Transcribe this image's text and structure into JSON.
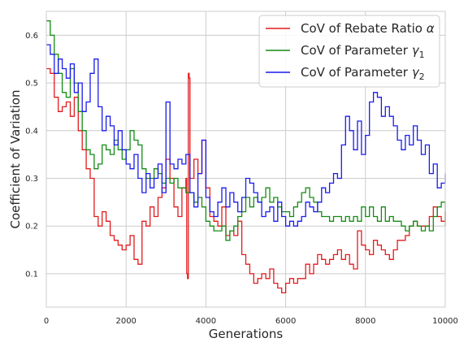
{
  "chart_data": {
    "type": "line",
    "title": "",
    "xlabel": "Generations",
    "ylabel": "Coefficient of Variation",
    "xlim": [
      0,
      10000
    ],
    "ylim": [
      0.03,
      0.65
    ],
    "xticks": [
      0,
      2000,
      4000,
      6000,
      8000,
      10000
    ],
    "xtick_labels": [
      "0",
      "2000",
      "4000",
      "6000",
      "8000",
      "10000"
    ],
    "yticks": [
      0.1,
      0.2,
      0.3,
      0.4,
      0.5,
      0.6
    ],
    "ytick_labels": [
      "0.1",
      "0.2",
      "0.3",
      "0.4",
      "0.5",
      "0.6"
    ],
    "grid": true,
    "legend_position": "top-right",
    "series": [
      {
        "name": "CoV of Rebate Ratio α",
        "label_main": "CoV of Rebate Ratio",
        "label_math": "α",
        "color": "#e31a1c",
        "x": [
          0,
          100,
          200,
          300,
          400,
          500,
          600,
          700,
          800,
          900,
          1000,
          1100,
          1200,
          1300,
          1400,
          1500,
          1600,
          1700,
          1800,
          1900,
          2000,
          2100,
          2200,
          2300,
          2400,
          2500,
          2600,
          2700,
          2800,
          2900,
          3000,
          3100,
          3200,
          3300,
          3400,
          3500,
          3520,
          3540,
          3560,
          3580,
          3600,
          3700,
          3800,
          3900,
          4000,
          4100,
          4200,
          4300,
          4400,
          4500,
          4600,
          4700,
          4800,
          4900,
          5000,
          5100,
          5200,
          5300,
          5400,
          5500,
          5600,
          5700,
          5800,
          5900,
          6000,
          6100,
          6200,
          6300,
          6400,
          6500,
          6600,
          6700,
          6800,
          6900,
          7000,
          7100,
          7200,
          7300,
          7400,
          7500,
          7600,
          7700,
          7800,
          7900,
          8000,
          8100,
          8200,
          8300,
          8400,
          8500,
          8600,
          8700,
          8800,
          8900,
          9000,
          9100,
          9200,
          9300,
          9400,
          9500,
          9600,
          9700,
          9800,
          9900,
          10000
        ],
        "y": [
          0.53,
          0.52,
          0.47,
          0.44,
          0.45,
          0.46,
          0.43,
          0.47,
          0.4,
          0.36,
          0.32,
          0.3,
          0.22,
          0.2,
          0.23,
          0.21,
          0.18,
          0.17,
          0.16,
          0.15,
          0.16,
          0.18,
          0.13,
          0.12,
          0.21,
          0.2,
          0.24,
          0.22,
          0.26,
          0.28,
          0.34,
          0.3,
          0.24,
          0.22,
          0.28,
          0.3,
          0.1,
          0.09,
          0.52,
          0.51,
          0.3,
          0.34,
          0.31,
          0.38,
          0.28,
          0.22,
          0.21,
          0.2,
          0.24,
          0.18,
          0.19,
          0.18,
          0.21,
          0.14,
          0.12,
          0.1,
          0.08,
          0.09,
          0.1,
          0.09,
          0.11,
          0.08,
          0.07,
          0.06,
          0.08,
          0.09,
          0.08,
          0.09,
          0.09,
          0.12,
          0.1,
          0.12,
          0.14,
          0.13,
          0.12,
          0.13,
          0.14,
          0.15,
          0.13,
          0.14,
          0.12,
          0.11,
          0.19,
          0.16,
          0.15,
          0.14,
          0.17,
          0.16,
          0.15,
          0.14,
          0.13,
          0.15,
          0.17,
          0.17,
          0.18,
          0.2,
          0.21,
          0.2,
          0.2,
          0.2,
          0.22,
          0.24,
          0.22,
          0.21,
          0.23
        ]
      },
      {
        "name": "CoV of Parameter γ1",
        "label_main": "CoV of Parameter",
        "label_math": "γ",
        "label_sub": "1",
        "color": "#138c13",
        "x": [
          0,
          100,
          200,
          300,
          400,
          500,
          600,
          700,
          800,
          900,
          1000,
          1100,
          1200,
          1300,
          1400,
          1500,
          1600,
          1700,
          1800,
          1900,
          2000,
          2100,
          2200,
          2300,
          2400,
          2500,
          2600,
          2700,
          2800,
          2900,
          3000,
          3100,
          3200,
          3300,
          3400,
          3500,
          3600,
          3700,
          3800,
          3900,
          4000,
          4100,
          4200,
          4300,
          4400,
          4500,
          4600,
          4700,
          4800,
          4900,
          5000,
          5100,
          5200,
          5300,
          5400,
          5500,
          5600,
          5700,
          5800,
          5900,
          6000,
          6100,
          6200,
          6300,
          6400,
          6500,
          6600,
          6700,
          6800,
          6900,
          7000,
          7100,
          7200,
          7300,
          7400,
          7500,
          7600,
          7700,
          7800,
          7900,
          8000,
          8100,
          8200,
          8300,
          8400,
          8500,
          8600,
          8700,
          8800,
          8900,
          9000,
          9100,
          9200,
          9300,
          9400,
          9500,
          9600,
          9700,
          9800,
          9900,
          10000
        ],
        "y": [
          0.63,
          0.6,
          0.56,
          0.52,
          0.48,
          0.47,
          0.53,
          0.5,
          0.44,
          0.4,
          0.36,
          0.35,
          0.32,
          0.33,
          0.37,
          0.36,
          0.35,
          0.38,
          0.36,
          0.34,
          0.36,
          0.4,
          0.38,
          0.37,
          0.32,
          0.3,
          0.3,
          0.32,
          0.31,
          0.29,
          0.3,
          0.29,
          0.3,
          0.28,
          0.28,
          0.27,
          0.27,
          0.25,
          0.26,
          0.24,
          0.21,
          0.2,
          0.19,
          0.19,
          0.2,
          0.17,
          0.19,
          0.2,
          0.22,
          0.23,
          0.26,
          0.24,
          0.26,
          0.25,
          0.26,
          0.28,
          0.25,
          0.26,
          0.24,
          0.23,
          0.23,
          0.22,
          0.24,
          0.25,
          0.27,
          0.28,
          0.26,
          0.25,
          0.23,
          0.22,
          0.22,
          0.21,
          0.22,
          0.22,
          0.21,
          0.22,
          0.21,
          0.22,
          0.21,
          0.24,
          0.22,
          0.24,
          0.22,
          0.21,
          0.24,
          0.21,
          0.22,
          0.21,
          0.21,
          0.2,
          0.19,
          0.2,
          0.21,
          0.2,
          0.19,
          0.2,
          0.19,
          0.22,
          0.24,
          0.25,
          0.2
        ]
      },
      {
        "name": "CoV of Parameter γ2",
        "label_main": "CoV of Parameter",
        "label_math": "γ",
        "label_sub": "2",
        "color": "#1a1aee",
        "x": [
          0,
          100,
          200,
          300,
          400,
          500,
          600,
          700,
          800,
          900,
          1000,
          1100,
          1200,
          1300,
          1400,
          1500,
          1600,
          1700,
          1800,
          1900,
          2000,
          2100,
          2200,
          2300,
          2400,
          2500,
          2600,
          2700,
          2800,
          2900,
          3000,
          3100,
          3200,
          3300,
          3400,
          3500,
          3600,
          3700,
          3800,
          3900,
          4000,
          4100,
          4200,
          4300,
          4400,
          4500,
          4600,
          4700,
          4800,
          4900,
          5000,
          5100,
          5200,
          5300,
          5400,
          5500,
          5600,
          5700,
          5800,
          5900,
          6000,
          6100,
          6200,
          6300,
          6400,
          6500,
          6600,
          6700,
          6800,
          6900,
          7000,
          7100,
          7200,
          7300,
          7400,
          7500,
          7600,
          7700,
          7800,
          7900,
          8000,
          8100,
          8200,
          8300,
          8400,
          8500,
          8600,
          8700,
          8800,
          8900,
          9000,
          9100,
          9200,
          9300,
          9400,
          9500,
          9600,
          9700,
          9800,
          9900,
          10000
        ],
        "y": [
          0.58,
          0.56,
          0.52,
          0.55,
          0.53,
          0.51,
          0.54,
          0.48,
          0.5,
          0.44,
          0.46,
          0.52,
          0.55,
          0.45,
          0.4,
          0.43,
          0.41,
          0.37,
          0.4,
          0.36,
          0.33,
          0.32,
          0.35,
          0.3,
          0.27,
          0.31,
          0.28,
          0.3,
          0.33,
          0.27,
          0.46,
          0.33,
          0.32,
          0.34,
          0.33,
          0.35,
          0.27,
          0.24,
          0.31,
          0.38,
          0.26,
          0.23,
          0.22,
          0.25,
          0.28,
          0.24,
          0.27,
          0.25,
          0.23,
          0.26,
          0.3,
          0.29,
          0.27,
          0.25,
          0.22,
          0.23,
          0.24,
          0.21,
          0.25,
          0.22,
          0.2,
          0.21,
          0.2,
          0.21,
          0.22,
          0.25,
          0.24,
          0.23,
          0.25,
          0.28,
          0.27,
          0.29,
          0.31,
          0.3,
          0.37,
          0.43,
          0.4,
          0.36,
          0.42,
          0.35,
          0.39,
          0.46,
          0.48,
          0.47,
          0.43,
          0.45,
          0.43,
          0.41,
          0.38,
          0.36,
          0.39,
          0.37,
          0.41,
          0.38,
          0.35,
          0.37,
          0.31,
          0.33,
          0.28,
          0.29,
          0.31
        ]
      }
    ]
  }
}
